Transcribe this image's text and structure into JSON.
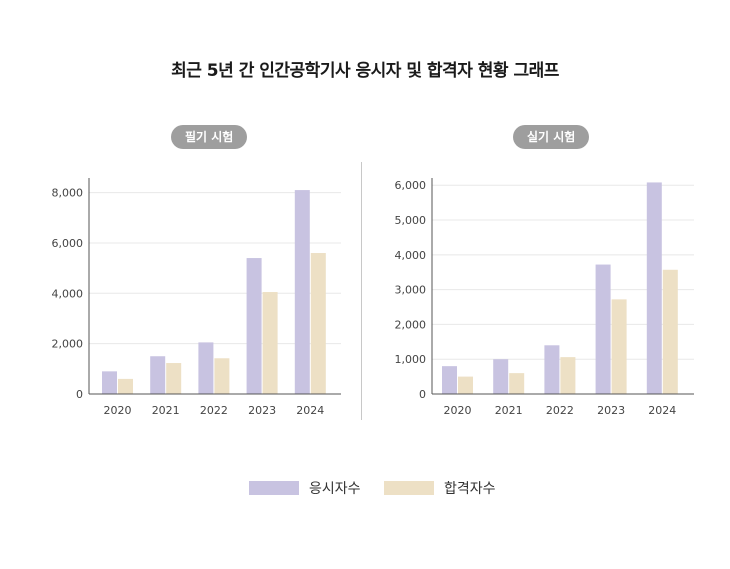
{
  "title": "최근 5년 간 인간공학기사 응시자 및 합격자 현황 그래프",
  "colors": {
    "applicants": "#c8c3e1",
    "passers": "#ede0c5",
    "pill": "#9e9e9e",
    "grid": "#e8e8e8",
    "axis": "#555555"
  },
  "legend": {
    "applicants": "응시자수",
    "passers": "합격자수"
  },
  "chart_data": [
    {
      "type": "bar",
      "title": "필기 시험",
      "categories": [
        "2020",
        "2021",
        "2022",
        "2023",
        "2024"
      ],
      "series": [
        {
          "name": "응시자수",
          "values": [
            900,
            1500,
            2050,
            5400,
            8100
          ]
        },
        {
          "name": "합격자수",
          "values": [
            600,
            1230,
            1420,
            4050,
            5600
          ]
        }
      ],
      "yticks": [
        "0",
        "2,000",
        "4,000",
        "6,000",
        "8,000"
      ],
      "ylim": [
        0,
        8500
      ],
      "grid": true
    },
    {
      "type": "bar",
      "title": "실기 시험",
      "categories": [
        "2020",
        "2021",
        "2022",
        "2023",
        "2024"
      ],
      "series": [
        {
          "name": "응시자수",
          "values": [
            800,
            1000,
            1400,
            3720,
            6080
          ]
        },
        {
          "name": "합격자수",
          "values": [
            500,
            600,
            1060,
            2720,
            3570
          ]
        }
      ],
      "yticks": [
        "0",
        "1,000",
        "2,000",
        "3,000",
        "4,000",
        "5,000",
        "6,000"
      ],
      "ylim": [
        0,
        6150
      ],
      "grid": true
    }
  ]
}
